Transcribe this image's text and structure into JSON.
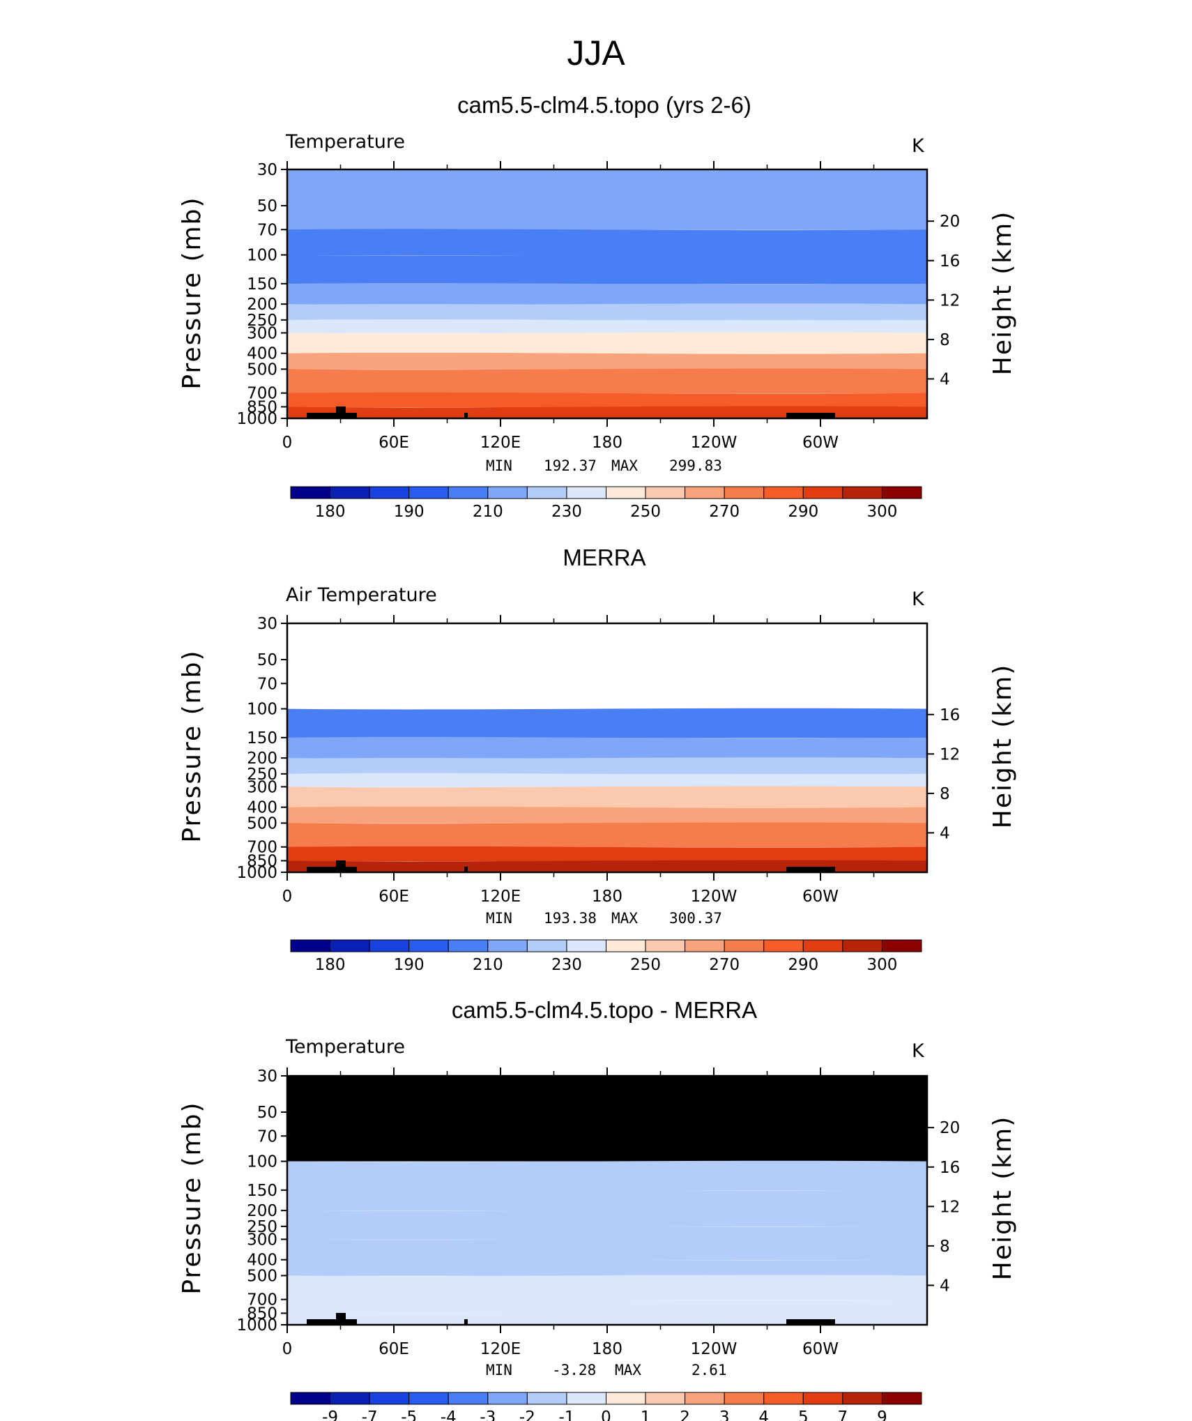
{
  "figure": {
    "title": "JJA"
  },
  "chart_data": [
    {
      "type": "heatmap",
      "panel_title": "cam5.5-clm4.5.topo (yrs 2-6)",
      "left_label": "Temperature",
      "right_label": "K",
      "ylabel": "Pressure (mb)",
      "ylabel2": "Height (km)",
      "y_ticks": [
        30,
        50,
        70,
        100,
        150,
        200,
        250,
        300,
        400,
        500,
        700,
        850,
        1000
      ],
      "y2_ticks": [
        20,
        16,
        12,
        8,
        4
      ],
      "x_ticks": [
        "0",
        "60E",
        "120E",
        "180",
        "120W",
        "60W"
      ],
      "ylim": [
        1000,
        30
      ],
      "stats": {
        "min_label": "MIN",
        "min": "192.37",
        "max_label": "MAX",
        "max": "299.83"
      },
      "colorbar": {
        "labels": [
          "180",
          "190",
          "210",
          "230",
          "250",
          "270",
          "290",
          "300"
        ],
        "colors": [
          "#00008b",
          "#0a1fb5",
          "#1842e0",
          "#2b5cf0",
          "#4a7ef5",
          "#7fa6f7",
          "#b3ccfa",
          "#dbe8fc",
          "#fdeadb",
          "#fbc9ad",
          "#f8a37b",
          "#f67c4e",
          "#f55d28",
          "#e03e12",
          "#b8240a",
          "#8b0000"
        ]
      },
      "profile_levels": [
        [
          30,
          210
        ],
        [
          70,
          195
        ],
        [
          100,
          192
        ],
        [
          150,
          198
        ],
        [
          200,
          210
        ],
        [
          250,
          220
        ],
        [
          300,
          232
        ],
        [
          400,
          248
        ],
        [
          500,
          258
        ],
        [
          700,
          274
        ],
        [
          850,
          285
        ],
        [
          1000,
          295
        ]
      ]
    },
    {
      "type": "heatmap",
      "panel_title": "MERRA",
      "left_label": "Air Temperature",
      "right_label": "K",
      "ylabel": "Pressure (mb)",
      "ylabel2": "Height (km)",
      "y_ticks": [
        30,
        50,
        70,
        100,
        150,
        200,
        250,
        300,
        400,
        500,
        700,
        850,
        1000
      ],
      "y2_ticks": [
        16,
        12,
        8,
        4
      ],
      "x_ticks": [
        "0",
        "60E",
        "120E",
        "180",
        "120W",
        "60W"
      ],
      "ylim": [
        1000,
        30
      ],
      "stats": {
        "min_label": "MIN",
        "min": "193.38",
        "max_label": "MAX",
        "max": "300.37"
      },
      "colorbar": {
        "labels": [
          "180",
          "190",
          "210",
          "230",
          "250",
          "270",
          "290",
          "300"
        ],
        "colors": [
          "#00008b",
          "#0a1fb5",
          "#1842e0",
          "#2b5cf0",
          "#4a7ef5",
          "#7fa6f7",
          "#b3ccfa",
          "#dbe8fc",
          "#fdeadb",
          "#fbc9ad",
          "#f8a37b",
          "#f67c4e",
          "#f55d28",
          "#e03e12",
          "#b8240a",
          "#8b0000"
        ]
      },
      "profile_levels": [
        [
          100,
          194
        ],
        [
          150,
          199
        ],
        [
          200,
          211
        ],
        [
          250,
          221
        ],
        [
          300,
          233
        ],
        [
          400,
          249
        ],
        [
          500,
          259
        ],
        [
          700,
          275
        ],
        [
          850,
          286
        ],
        [
          1000,
          296
        ]
      ]
    },
    {
      "type": "heatmap",
      "panel_title": "cam5.5-clm4.5.topo - MERRA",
      "left_label": "Temperature",
      "right_label": "K",
      "ylabel": "Pressure (mb)",
      "ylabel2": "Height (km)",
      "y_ticks": [
        30,
        50,
        70,
        100,
        150,
        200,
        250,
        300,
        400,
        500,
        700,
        850,
        1000
      ],
      "y2_ticks": [
        20,
        16,
        12,
        8,
        4
      ],
      "x_ticks": [
        "0",
        "60E",
        "120E",
        "180",
        "120W",
        "60W"
      ],
      "ylim": [
        1000,
        30
      ],
      "stats": {
        "min_label": "MIN",
        "min": "-3.28",
        "max_label": "MAX",
        "max": "2.61"
      },
      "colorbar": {
        "labels": [
          "-9",
          "-7",
          "-5",
          "-4",
          "-3",
          "-2",
          "-1",
          "0",
          "1",
          "2",
          "3",
          "4",
          "5",
          "7",
          "9"
        ],
        "colors": [
          "#00008b",
          "#0a1fb5",
          "#1842e0",
          "#2b5cf0",
          "#4a7ef5",
          "#7fa6f7",
          "#b3ccfa",
          "#dbe8fc",
          "#fdeadb",
          "#fbc9ad",
          "#f8a37b",
          "#f67c4e",
          "#f55d28",
          "#e03e12",
          "#b8240a",
          "#8b0000"
        ]
      },
      "profile_levels": [
        [
          100,
          -1.5
        ],
        [
          150,
          -1.0
        ],
        [
          200,
          -1.5
        ],
        [
          250,
          -1.2
        ],
        [
          300,
          -1.8
        ],
        [
          400,
          -1.5
        ],
        [
          500,
          -0.8
        ],
        [
          700,
          -1.0
        ],
        [
          850,
          -0.5
        ],
        [
          1000,
          0.3
        ]
      ]
    }
  ]
}
